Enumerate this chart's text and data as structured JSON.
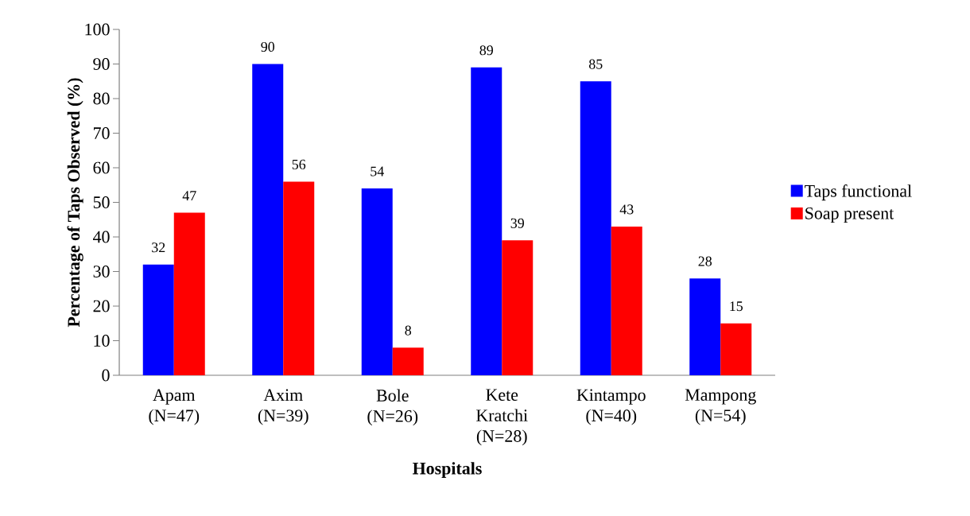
{
  "chart_data": {
    "type": "bar",
    "xlabel": "Hospitals",
    "ylabel": "Percentage of Taps Observed (%)",
    "categories": [
      "Apam (N=47)",
      "Axim (N=39)",
      "Bole (N=26)",
      "Kete Kratchi (N=28)",
      "Kintampo (N=40)",
      "Mampong (N=54)"
    ],
    "series": [
      {
        "name": "Taps functional",
        "color": "#0000ff",
        "values": [
          32,
          90,
          54,
          89,
          85,
          28
        ]
      },
      {
        "name": "Soap present",
        "color": "#ff0000",
        "values": [
          47,
          56,
          8,
          39,
          43,
          15
        ]
      }
    ],
    "ylim": [
      0,
      100
    ],
    "yticks": [
      0,
      10,
      20,
      30,
      40,
      50,
      60,
      70,
      80,
      90,
      100
    ],
    "data_labels": true,
    "legend": "right",
    "grid": false
  }
}
